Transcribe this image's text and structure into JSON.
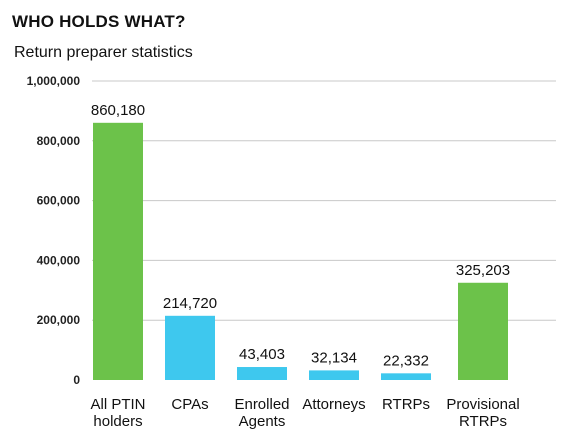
{
  "header": {
    "title": "WHO HOLDS WHAT?",
    "subtitle": "Return preparer statistics"
  },
  "chart_data": {
    "type": "bar",
    "title": "WHO HOLDS WHAT?",
    "subtitle": "Return preparer statistics",
    "xlabel": "",
    "ylabel": "",
    "ylim": [
      0,
      1000000
    ],
    "yticks": [
      0,
      200000,
      400000,
      600000,
      800000,
      1000000
    ],
    "ytick_labels": [
      "0",
      "200,000",
      "400,000",
      "600,000",
      "800,000",
      "1,000,000"
    ],
    "grid": true,
    "categories": [
      [
        "All PTIN",
        "holders"
      ],
      [
        "CPAs"
      ],
      [
        "Enrolled",
        "Agents"
      ],
      [
        "Attorneys"
      ],
      [
        "RTRPs"
      ],
      [
        "Provisional",
        "RTRPs"
      ]
    ],
    "values": [
      860180,
      214720,
      43403,
      32134,
      22332,
      325203
    ],
    "value_labels": [
      "860,180",
      "214,720",
      "43,403",
      "32,134",
      "22,332",
      "325,203"
    ],
    "colors": [
      "#6cc24a",
      "#3ec8ee",
      "#3ec8ee",
      "#3ec8ee",
      "#3ec8ee",
      "#6cc24a"
    ]
  }
}
